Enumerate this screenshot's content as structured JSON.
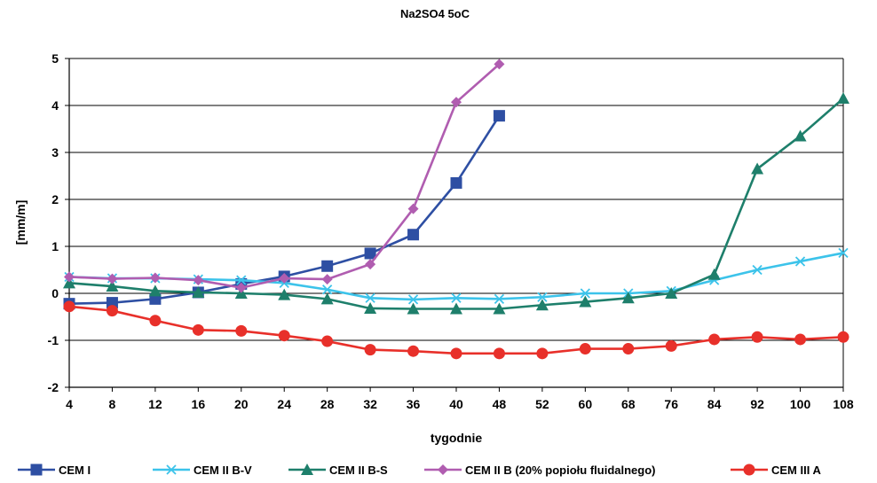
{
  "chart_data": {
    "type": "line",
    "title": "Na2SO4 5oC",
    "xlabel": "tygodnie",
    "ylabel": "[mm/m]",
    "categories": [
      "4",
      "8",
      "12",
      "16",
      "20",
      "24",
      "28",
      "32",
      "36",
      "40",
      "48",
      "52",
      "60",
      "68",
      "76",
      "84",
      "92",
      "100",
      "108"
    ],
    "ylim": [
      -2,
      5
    ],
    "yticks": [
      "-2",
      "-1",
      "0",
      "1",
      "2",
      "3",
      "4",
      "5"
    ],
    "grid": "horizontal",
    "legend_position": "bottom",
    "series": [
      {
        "name": "CEM I",
        "color": "#2e4fa3",
        "marker": "square",
        "values": [
          -0.22,
          -0.2,
          -0.12,
          0.02,
          0.2,
          0.36,
          0.58,
          0.85,
          1.25,
          2.35,
          3.78,
          null,
          null,
          null,
          null,
          null,
          null,
          null,
          null
        ]
      },
      {
        "name": "CEM II B-V",
        "color": "#3cc3ea",
        "marker": "x",
        "values": [
          0.35,
          0.32,
          0.32,
          0.3,
          0.28,
          0.22,
          0.08,
          -0.1,
          -0.13,
          -0.1,
          -0.12,
          -0.08,
          0.0,
          0.0,
          0.05,
          0.28,
          0.5,
          0.68,
          0.86
        ]
      },
      {
        "name": "CEM II B-S",
        "color": "#1e7f6b",
        "marker": "triangle",
        "values": [
          0.22,
          0.15,
          0.05,
          0.02,
          0.0,
          -0.03,
          -0.12,
          -0.32,
          -0.33,
          -0.33,
          -0.33,
          -0.25,
          -0.18,
          -0.1,
          0.0,
          0.4,
          2.65,
          3.35,
          4.15
        ]
      },
      {
        "name": "CEM II B (20% popiołu fluidalnego)",
        "color": "#b05db0",
        "marker": "diamond",
        "values": [
          0.35,
          0.31,
          0.33,
          0.28,
          0.12,
          0.32,
          0.3,
          0.62,
          1.8,
          4.07,
          4.88,
          null,
          null,
          null,
          null,
          null,
          null,
          null,
          null
        ]
      },
      {
        "name": "CEM III A",
        "color": "#e8302a",
        "marker": "circle",
        "values": [
          -0.28,
          -0.37,
          -0.58,
          -0.78,
          -0.8,
          -0.9,
          -1.02,
          -1.2,
          -1.23,
          -1.28,
          -1.28,
          -1.28,
          -1.18,
          -1.18,
          -1.12,
          -0.98,
          -0.93,
          -0.98,
          -0.93
        ]
      }
    ]
  }
}
